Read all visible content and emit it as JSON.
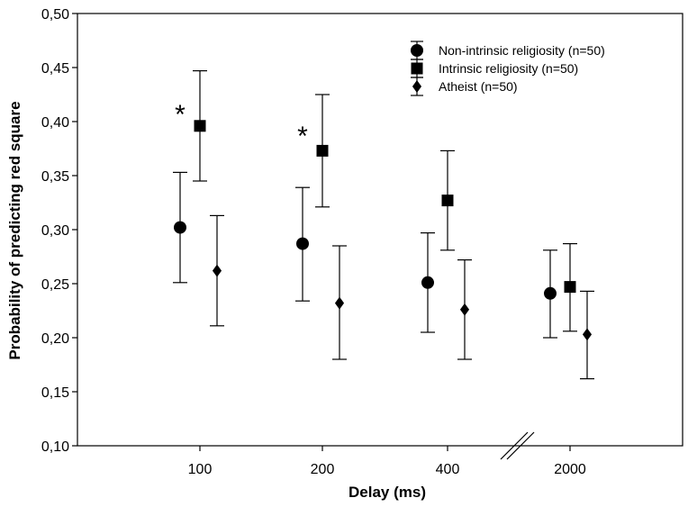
{
  "chart_data": {
    "type": "scatter",
    "title": "",
    "xlabel": "Delay (ms)",
    "ylabel": "Probability of predicting red square",
    "categories": [
      "100",
      "200",
      "400",
      "2000"
    ],
    "ylim": [
      0.1,
      0.5
    ],
    "y_ticks": [
      "0,10",
      "0,15",
      "0,20",
      "0,25",
      "0,30",
      "0,35",
      "0,40",
      "0,45",
      "0,50"
    ],
    "axis_break": "between 400 and 2000",
    "grid": false,
    "legend_position": "top-right",
    "series": [
      {
        "name": "Non-intrinsic religiosity (n=50)",
        "marker": "circle",
        "values": [
          0.302,
          0.287,
          0.251,
          0.241
        ],
        "error_low": [
          0.251,
          0.234,
          0.205,
          0.2
        ],
        "error_high": [
          0.353,
          0.339,
          0.297,
          0.281
        ]
      },
      {
        "name": "Intrinsic religiosity (n=50)",
        "marker": "square",
        "values": [
          0.396,
          0.373,
          0.327,
          0.247
        ],
        "error_low": [
          0.345,
          0.321,
          0.281,
          0.206
        ],
        "error_high": [
          0.447,
          0.425,
          0.373,
          0.287
        ]
      },
      {
        "name": "Atheist (n=50)",
        "marker": "diamond",
        "values": [
          0.262,
          0.232,
          0.226,
          0.203
        ],
        "error_low": [
          0.211,
          0.18,
          0.18,
          0.162
        ],
        "error_high": [
          0.313,
          0.285,
          0.272,
          0.243
        ]
      }
    ],
    "annotations": [
      {
        "text": "*",
        "category": "100",
        "value": 0.41
      },
      {
        "text": "*",
        "category": "200",
        "value": 0.39
      }
    ]
  }
}
